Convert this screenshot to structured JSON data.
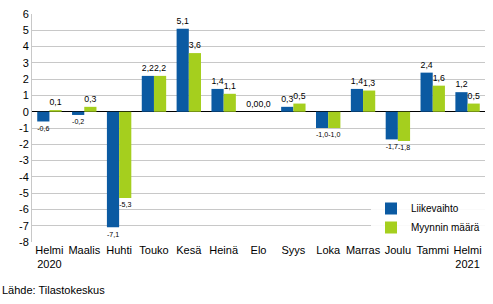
{
  "chart_data": {
    "type": "bar",
    "categories": [
      "Helmi\n2020",
      "Maalis",
      "Huhti",
      "Touko",
      "Kesä",
      "Heinä",
      "Elo",
      "Syys",
      "Loka",
      "Marras",
      "Joulu",
      "Tammi",
      "Helmi\n2021"
    ],
    "series": [
      {
        "name": "Liikevaihto",
        "color": "#0b5aa2",
        "values": [
          -0.6,
          -0.2,
          -7.1,
          2.2,
          5.1,
          1.4,
          0.0,
          0.3,
          -1.0,
          1.4,
          -1.7,
          2.4,
          1.2
        ],
        "value_labels": [
          "-0,6",
          "-0,2",
          "-7,1",
          "2,2",
          "5,1",
          "1,4",
          "0,0",
          "0,3",
          "-1,0",
          "1,4",
          "-1,7",
          "2,4",
          "1,2"
        ]
      },
      {
        "name": "Myynnin määrä",
        "color": "#a5cf1e",
        "values": [
          0.1,
          0.3,
          -5.3,
          2.2,
          3.6,
          1.1,
          0.0,
          0.5,
          -1.0,
          1.3,
          -1.8,
          1.6,
          0.5
        ],
        "value_labels": [
          "0,1",
          "0,3",
          "-5,3",
          "2,2",
          "3,6",
          "1,1",
          "0,0",
          "0,5",
          "-1,0",
          "1,3",
          "-1,8",
          "1,6",
          "0,5"
        ]
      }
    ],
    "ylim": [
      -8,
      6
    ],
    "yticks": [
      -8,
      -7,
      -6,
      -5,
      -4,
      -3,
      -2,
      -1,
      0,
      1,
      2,
      3,
      4,
      5,
      6
    ],
    "grid": true,
    "legend": "lower right",
    "data_labels": true,
    "annotations": [
      "Lähde: Tilastokeskus"
    ]
  }
}
